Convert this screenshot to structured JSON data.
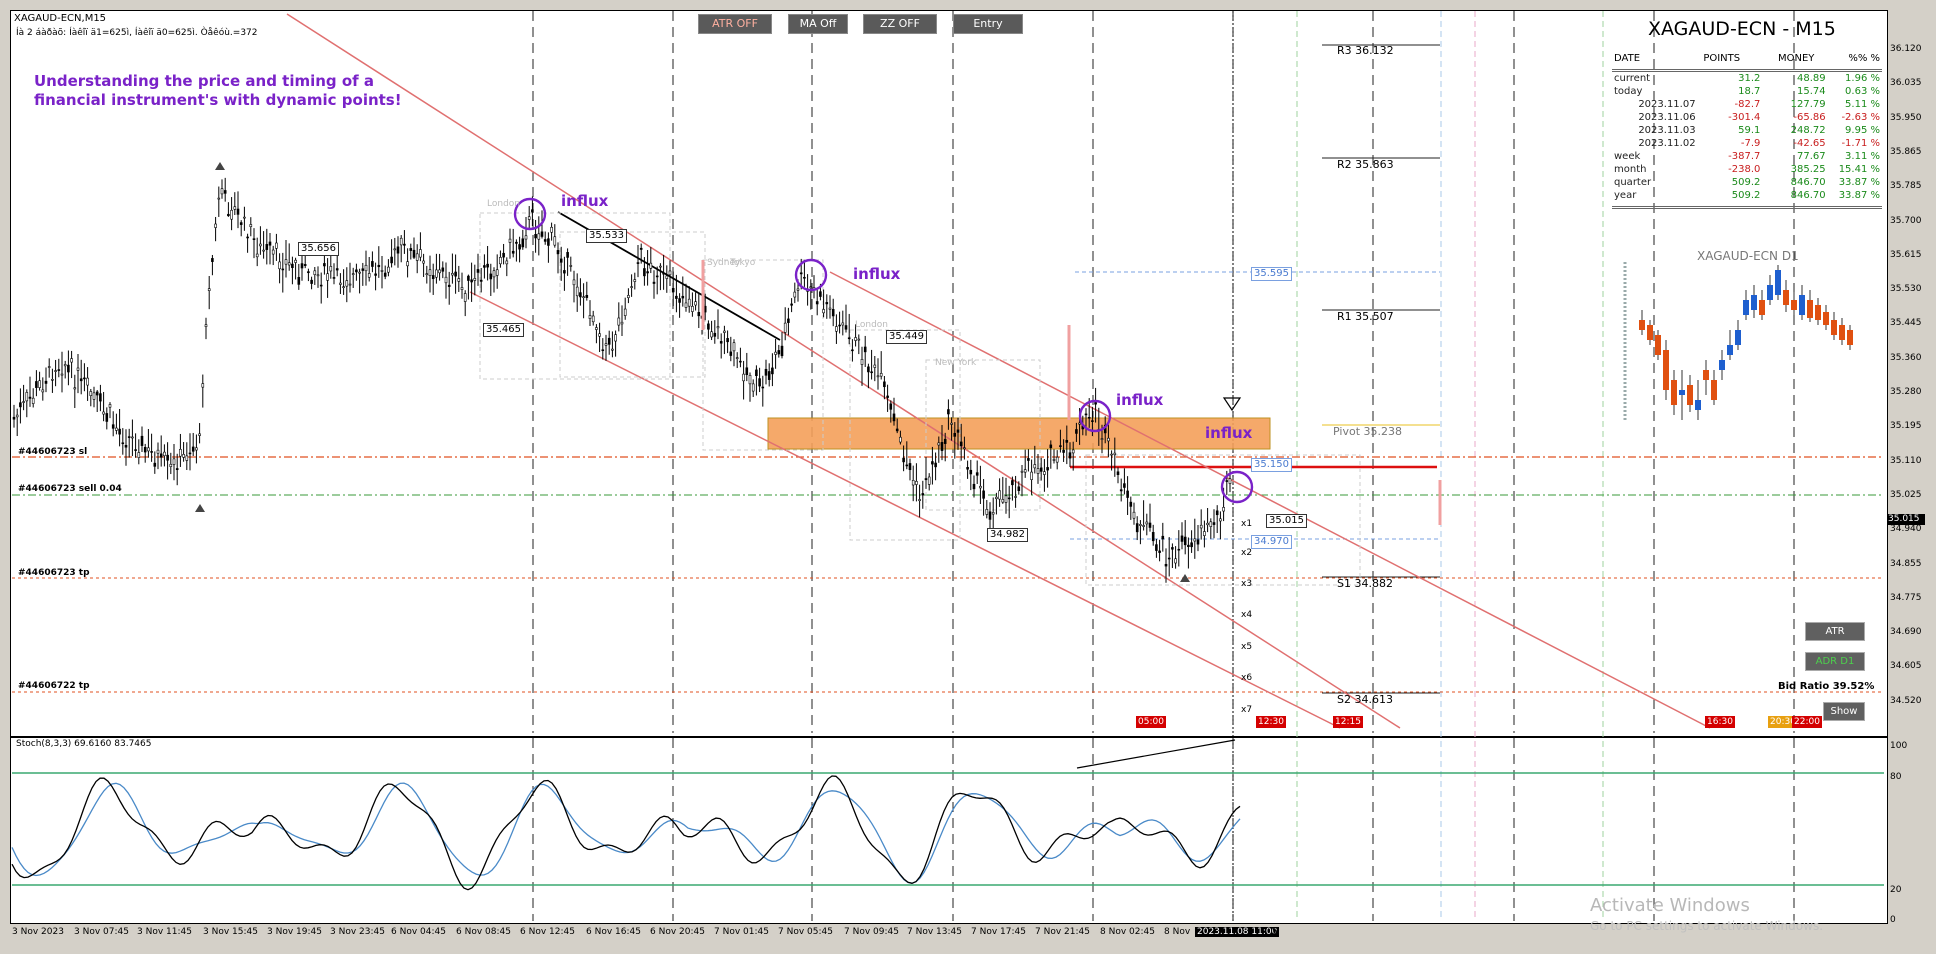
{
  "chart": {
    "symbol_title": "XAGAUD-ECN,M15",
    "subtitle": "Íà 2 áàðàõ: Íàêîï ä1=625ì, Íàêîï ä0=625ì. Òåêóù.=372",
    "headline_line1": "Understanding the price and timing of a",
    "headline_line2": "financial instrument's with dynamic points!",
    "influx_label": "influx",
    "big_symbol": "XAGAUD-ECN - M15",
    "mini_chart_title": "XAGAUD-ECN D1",
    "bid_ratio": "Bid Ratio 39.52%",
    "stoch_label": "Stoch(8,3,3) 69.6160 83.7465",
    "current_price": "35.015"
  },
  "toolbar": {
    "buttons": [
      "ATR OFF",
      "MA Off",
      "ZZ OFF",
      "Entry"
    ]
  },
  "right_buttons": {
    "atr": "ATR",
    "adr": "ADR D1",
    "show": "Show"
  },
  "pivots": {
    "r3": "R3 36.132",
    "r2": "R2 35.863",
    "r1": "R1 35.507",
    "pivot": "Pivot 35.238",
    "s1": "S1 34.882",
    "s2": "S2 34.613"
  },
  "order_labels": {
    "sl": "#44606723 sl",
    "sell": "#44606723 sell 0.04",
    "tp1": "#44606723 tp",
    "tp2": "#44606722 tp"
  },
  "price_boxes": {
    "p1": "35.656",
    "p2": "35.533",
    "p3": "35.465",
    "p4": "35.449",
    "p5": "35.595",
    "p6": "34.982",
    "p7": "35.015",
    "p8": "34.970",
    "p9": "35.150"
  },
  "session_labels": {
    "london1": "London",
    "sydney": "Sydney",
    "tokyo": "Tokyo",
    "london2": "London",
    "newyork": "New York"
  },
  "x_markers": [
    "x1",
    "x2",
    "x3",
    "x4",
    "x5",
    "x6",
    "x7"
  ],
  "time_badges": [
    "05:00",
    "12:30",
    "12:15",
    "16:30",
    "20:30",
    "22:00"
  ],
  "stats_table": {
    "headers": [
      "DATE",
      "POINTS",
      "MONEY",
      "%% %"
    ],
    "rows": [
      [
        "current",
        "31.2",
        "48.89",
        "1.96 %"
      ],
      [
        "today",
        "18.7",
        "15.74",
        "0.63 %"
      ],
      [
        "2023.11.07",
        "-82.7",
        "127.79",
        "5.11 %"
      ],
      [
        "2023.11.06",
        "-301.4",
        "-65.86",
        "-2.63 %"
      ],
      [
        "2023.11.03",
        "59.1",
        "248.72",
        "9.95 %"
      ],
      [
        "2023.11.02",
        "-7.9",
        "-42.65",
        "-1.71 %"
      ],
      [
        "week",
        "-387.7",
        "77.67",
        "3.11 %"
      ],
      [
        "month",
        "-238.0",
        "385.25",
        "15.41 %"
      ],
      [
        "quarter",
        "509.2",
        "846.70",
        "33.87 %"
      ],
      [
        "year",
        "509.2",
        "846.70",
        "33.87 %"
      ]
    ]
  },
  "y_axis": [
    "36.120",
    "36.035",
    "35.950",
    "35.865",
    "35.785",
    "35.700",
    "35.615",
    "35.530",
    "35.445",
    "35.360",
    "35.280",
    "35.195",
    "35.110",
    "35.025",
    "34.940",
    "34.855",
    "34.775",
    "34.690",
    "34.605",
    "34.520"
  ],
  "stoch_axis": [
    "100",
    "80",
    "20",
    "0"
  ],
  "x_axis": [
    "3 Nov 2023",
    "3 Nov 07:45",
    "3 Nov 11:45",
    "3 Nov 15:45",
    "3 Nov 19:45",
    "3 Nov 23:45",
    "6 Nov 04:45",
    "6 Nov 08:45",
    "6 Nov 12:45",
    "6 Nov 16:45",
    "6 Nov 20:45",
    "7 Nov 01:45",
    "7 Nov 05:45",
    "7 Nov 09:45",
    "7 Nov 13:45",
    "7 Nov 17:45",
    "7 Nov 21:45",
    "8 Nov 02:45",
    "8 Nov",
    "2023.11.08 11:00",
    "5"
  ],
  "colors": {
    "accent_purple": "#7a22c8",
    "zone_orange": "#f5a05a",
    "channel_red": "#e07070",
    "stoch_green": "#3aa870",
    "pos_green": "#1a8a1a",
    "neg_red": "#c81e1e"
  },
  "watermark": {
    "line1": "Activate Windows",
    "line2": "Go to PC settings to activate Windows."
  }
}
